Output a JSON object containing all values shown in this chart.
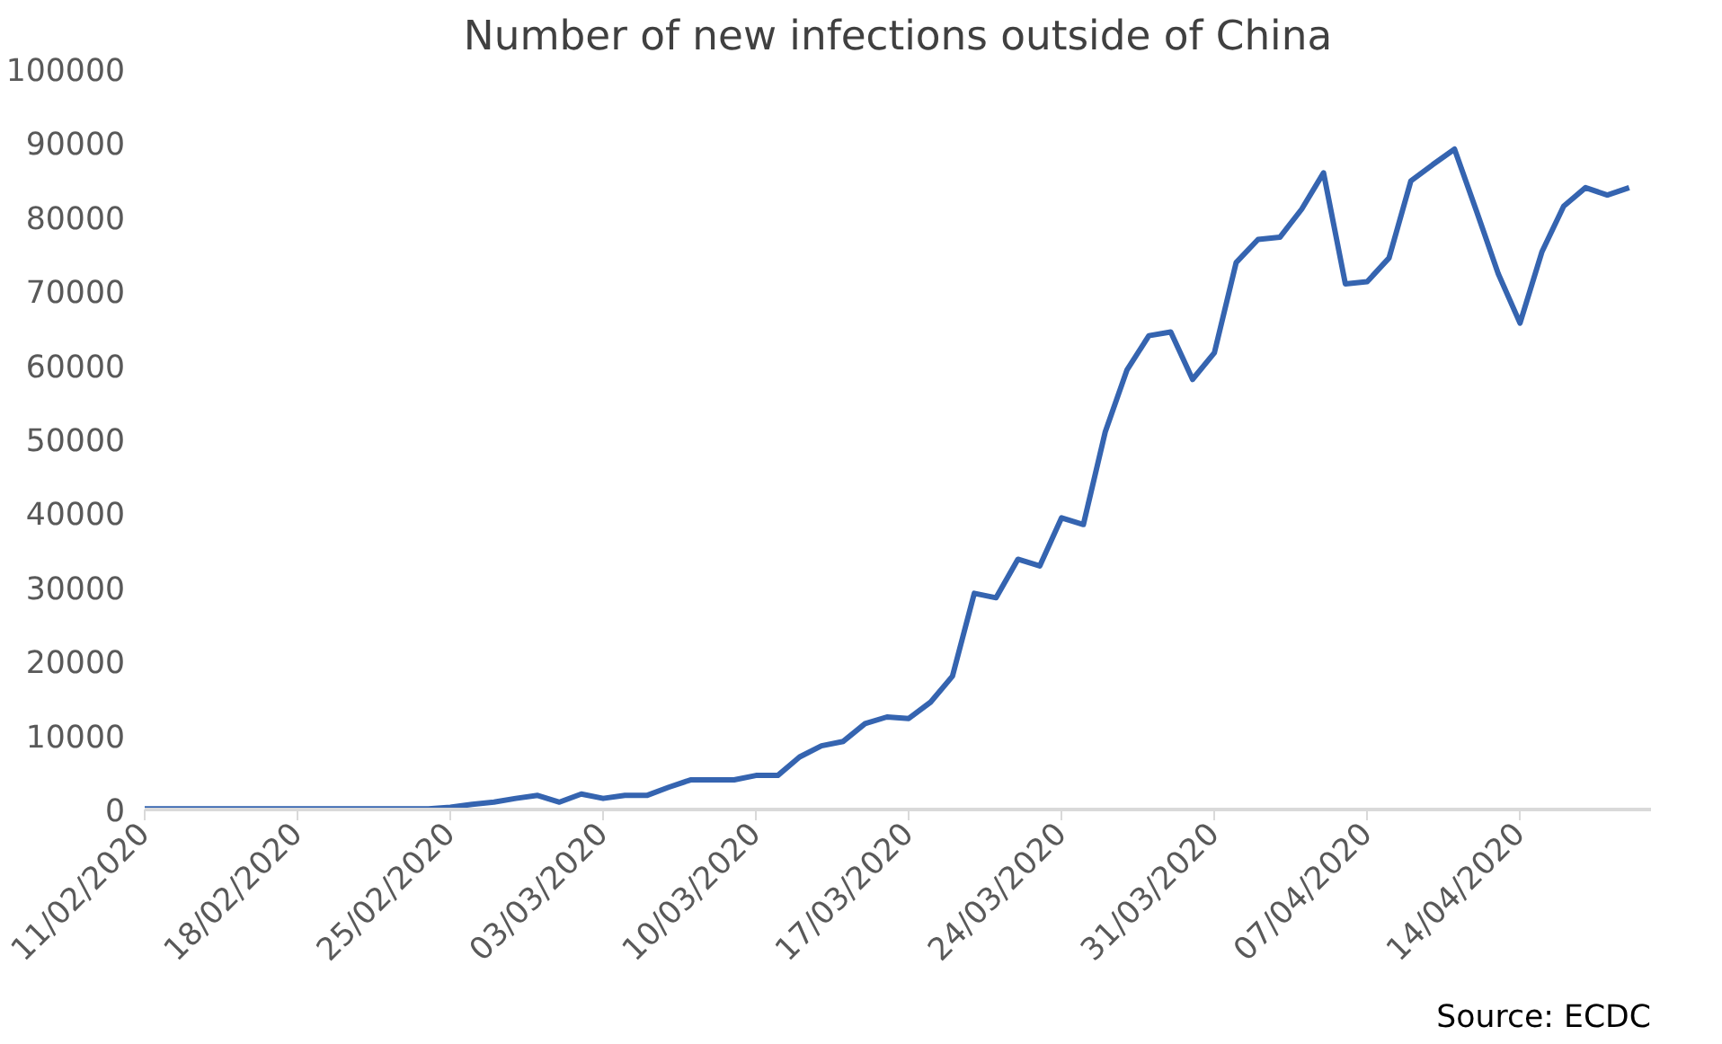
{
  "chart_data": {
    "type": "line",
    "title": "Number of new infections outside of China",
    "x": [
      "2020-02-11",
      "2020-02-12",
      "2020-02-13",
      "2020-02-14",
      "2020-02-15",
      "2020-02-16",
      "2020-02-17",
      "2020-02-18",
      "2020-02-19",
      "2020-02-20",
      "2020-02-21",
      "2020-02-22",
      "2020-02-23",
      "2020-02-24",
      "2020-02-25",
      "2020-02-26",
      "2020-02-27",
      "2020-02-28",
      "2020-02-29",
      "2020-03-01",
      "2020-03-02",
      "2020-03-03",
      "2020-03-04",
      "2020-03-05",
      "2020-03-06",
      "2020-03-07",
      "2020-03-08",
      "2020-03-09",
      "2020-03-10",
      "2020-03-11",
      "2020-03-12",
      "2020-03-13",
      "2020-03-14",
      "2020-03-15",
      "2020-03-16",
      "2020-03-17",
      "2020-03-18",
      "2020-03-19",
      "2020-03-20",
      "2020-03-21",
      "2020-03-22",
      "2020-03-23",
      "2020-03-24",
      "2020-03-25",
      "2020-03-26",
      "2020-03-27",
      "2020-03-28",
      "2020-03-29",
      "2020-03-30",
      "2020-03-31",
      "2020-04-01",
      "2020-04-02",
      "2020-04-03",
      "2020-04-04",
      "2020-04-05",
      "2020-04-06",
      "2020-04-07",
      "2020-04-08",
      "2020-04-09",
      "2020-04-10",
      "2020-04-11",
      "2020-04-12",
      "2020-04-13",
      "2020-04-14",
      "2020-04-15",
      "2020-04-16",
      "2020-04-17",
      "2020-04-18",
      "2020-04-19"
    ],
    "series": [
      {
        "color": "#3564b0",
        "values": [
          100,
          100,
          100,
          100,
          100,
          100,
          100,
          100,
          100,
          100,
          100,
          100,
          100,
          100,
          300,
          700,
          1000,
          1500,
          1900,
          1000,
          2100,
          1500,
          1900,
          1900,
          3000,
          4000,
          4000,
          4000,
          4600,
          4600,
          7100,
          8600,
          9200,
          11600,
          12500,
          12300,
          14500,
          18000,
          29200,
          28600,
          33800,
          32900,
          39400,
          38500,
          51000,
          59400,
          64000,
          64500,
          58100,
          61700,
          73900,
          77000,
          77300,
          81100,
          86000,
          71000,
          71300,
          74500,
          84900,
          87100,
          89200,
          80900,
          72400,
          65700,
          75300,
          81500,
          84000,
          83000,
          84000
        ]
      }
    ],
    "xlim": [
      "2020-02-11",
      "2020-04-20"
    ],
    "xticks": [
      {
        "value": "2020-02-11",
        "label": "11/02/2020"
      },
      {
        "value": "2020-02-18",
        "label": "18/02/2020"
      },
      {
        "value": "2020-02-25",
        "label": "25/02/2020"
      },
      {
        "value": "2020-03-03",
        "label": "03/03/2020"
      },
      {
        "value": "2020-03-10",
        "label": "10/03/2020"
      },
      {
        "value": "2020-03-17",
        "label": "17/03/2020"
      },
      {
        "value": "2020-03-24",
        "label": "24/03/2020"
      },
      {
        "value": "2020-03-31",
        "label": "31/03/2020"
      },
      {
        "value": "2020-04-07",
        "label": "07/04/2020"
      },
      {
        "value": "2020-04-14",
        "label": "14/04/2020"
      }
    ],
    "ylim": [
      0,
      100000
    ],
    "yticks": [
      0,
      10000,
      20000,
      30000,
      40000,
      50000,
      60000,
      70000,
      80000,
      90000,
      100000
    ],
    "grid": false,
    "marker": "none",
    "line_style": "solid",
    "annotations": [
      "Source: ECDC"
    ]
  }
}
